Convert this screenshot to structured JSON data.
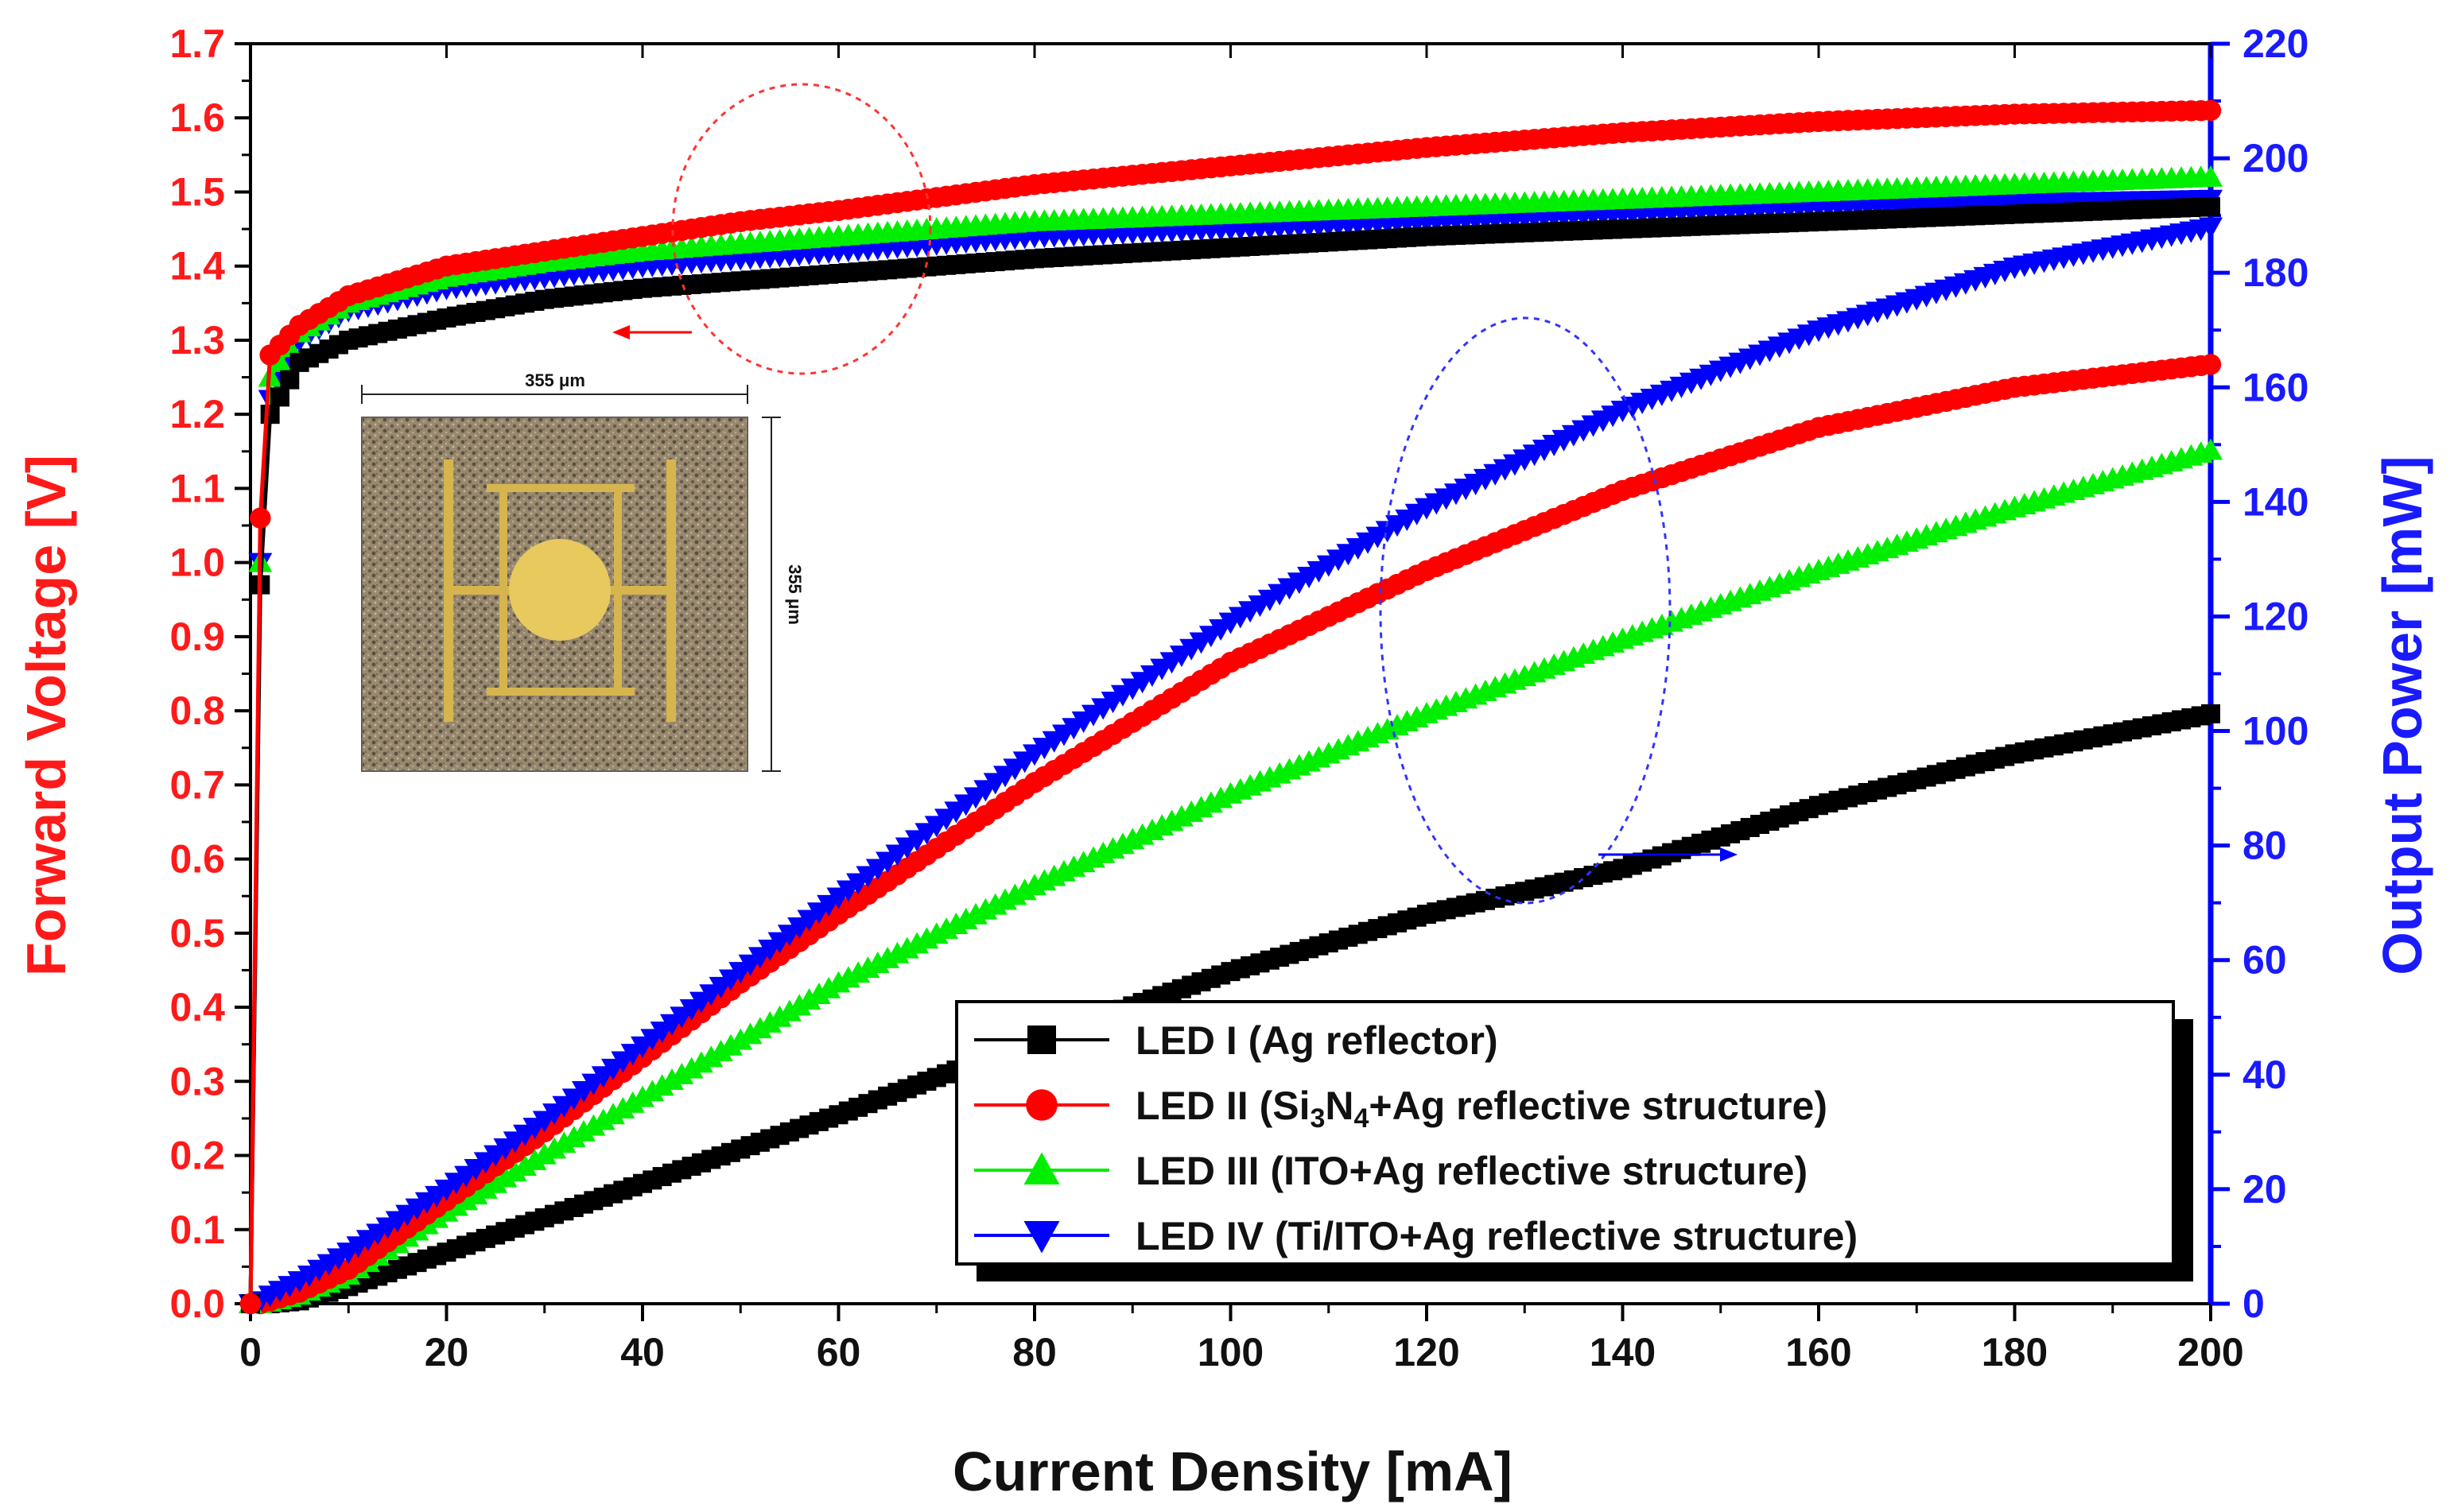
{
  "chart_data": {
    "type": "line",
    "xlabel": "Current Density [mA]",
    "ylabel_left": "Forward Voltage [V]",
    "ylabel_right": "Output Power [mW]",
    "x_ticks": [
      "0",
      "20",
      "40",
      "60",
      "80",
      "100",
      "120",
      "140",
      "160",
      "180",
      "200"
    ],
    "y_left_ticks": [
      "0.0",
      "0.1",
      "0.2",
      "0.3",
      "0.4",
      "0.5",
      "0.6",
      "0.7",
      "0.8",
      "0.9",
      "1.0",
      "1.1",
      "1.2",
      "1.3",
      "1.4",
      "1.5",
      "1.6",
      "1.7"
    ],
    "y_right_ticks": [
      "0",
      "20",
      "40",
      "60",
      "80",
      "100",
      "120",
      "140",
      "160",
      "180",
      "200",
      "220"
    ],
    "xlim": [
      0,
      200
    ],
    "ylim_left": [
      0,
      1.7
    ],
    "ylim_right": [
      0,
      220
    ],
    "x": [
      0,
      1,
      2,
      5,
      10,
      20,
      30,
      40,
      50,
      60,
      80,
      100,
      120,
      140,
      160,
      180,
      200
    ],
    "series": [
      {
        "name": "LED I (Ag reflector)",
        "color": "#000000",
        "marker": "square",
        "axis": "left",
        "values": [
          0.0,
          0.97,
          1.2,
          1.27,
          1.3,
          1.33,
          1.355,
          1.37,
          1.38,
          1.39,
          1.41,
          1.425,
          1.44,
          1.45,
          1.46,
          1.47,
          1.48
        ]
      },
      {
        "name": "LED II (Si3N4+Ag reflective structure)",
        "color": "#ff0000",
        "marker": "circle",
        "axis": "left",
        "values": [
          0.0,
          1.06,
          1.28,
          1.32,
          1.36,
          1.4,
          1.42,
          1.44,
          1.46,
          1.475,
          1.51,
          1.535,
          1.56,
          1.58,
          1.595,
          1.605,
          1.61
        ]
      },
      {
        "name": "LED III (ITO+Ag reflective structure)",
        "color": "#00ee00",
        "marker": "triangle-up",
        "axis": "left",
        "values": [
          0.0,
          1.0,
          1.25,
          1.31,
          1.35,
          1.385,
          1.405,
          1.42,
          1.43,
          1.44,
          1.46,
          1.47,
          1.48,
          1.49,
          1.5,
          1.51,
          1.52
        ]
      },
      {
        "name": "LED IV (Ti/ITO+Ag reflective structure)",
        "color": "#0000ff",
        "marker": "triangle-down",
        "axis": "left",
        "values": [
          0.0,
          1.0,
          1.22,
          1.3,
          1.34,
          1.37,
          1.385,
          1.4,
          1.41,
          1.42,
          1.44,
          1.45,
          1.46,
          1.47,
          1.48,
          1.485,
          1.49
        ]
      },
      {
        "name": "LED I (Ag reflector)",
        "color": "#000000",
        "marker": "square",
        "axis": "right",
        "values": [
          0,
          0,
          0,
          0.5,
          3,
          9,
          15,
          21,
          27,
          33,
          46,
          58,
          68,
          76,
          87,
          96,
          103
        ]
      },
      {
        "name": "LED II (Si3N4+Ag reflective structure)",
        "color": "#ff0000",
        "marker": "circle",
        "axis": "right",
        "values": [
          0,
          0,
          0.5,
          2,
          6,
          18,
          30,
          43,
          56,
          68,
          91,
          112,
          128,
          142,
          153,
          160,
          164
        ]
      },
      {
        "name": "LED III (ITO+Ag reflective structure)",
        "color": "#00ee00",
        "marker": "triangle-up",
        "axis": "right",
        "values": [
          0,
          0,
          0.3,
          1.5,
          5,
          16,
          26,
          36,
          46,
          56,
          73,
          89,
          103,
          116,
          128,
          139,
          149
        ]
      },
      {
        "name": "LED IV (Ti/ITO+Ag reflective structure)",
        "color": "#0000ff",
        "marker": "triangle-down",
        "axis": "right",
        "values": [
          0,
          0.5,
          1.5,
          4,
          9,
          20,
          32,
          45,
          58,
          71,
          96,
          119,
          139,
          156,
          170,
          181,
          188
        ]
      }
    ],
    "legend": {
      "placement": "bottom-right",
      "entries": [
        {
          "prefix": "LED I (Ag reflector)",
          "sub1": "",
          "mid": "",
          "sub2": "",
          "suffix": ""
        },
        {
          "prefix": "LED II (Si",
          "sub1": "3",
          "mid": "N",
          "sub2": "4",
          "suffix": "+Ag reflective structure)"
        },
        {
          "prefix": "LED III (ITO+Ag reflective structure)",
          "sub1": "",
          "mid": "",
          "sub2": "",
          "suffix": ""
        },
        {
          "prefix": "LED IV (Ti/ITO+Ag reflective structure)",
          "sub1": "",
          "mid": "",
          "sub2": "",
          "suffix": ""
        }
      ]
    },
    "annotations": {
      "voltage_group_arrow": "left",
      "power_group_arrow": "right",
      "inset_label_width": "355 μm",
      "inset_label_height": "355 μm"
    },
    "colors": {
      "left_axis": "#ff1a1a",
      "right_axis": "#1a1aff",
      "frame": "#000000"
    }
  }
}
